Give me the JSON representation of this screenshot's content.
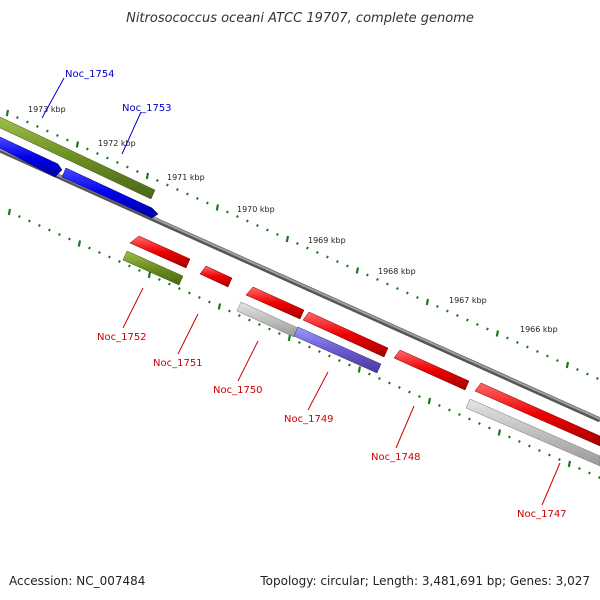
{
  "title": "Nitrosococcus oceani ATCC 19707, complete genome",
  "footer": {
    "accession": "Accession: NC_007484",
    "summary": "Topology: circular; Length: 3,481,691 bp; Genes: 3,027"
  },
  "ticks": [
    "1973 kbp",
    "1972 kbp",
    "1971 kbp",
    "1970 kbp",
    "1969 kbp",
    "1968 kbp",
    "1967 kbp",
    "1966 kbp"
  ],
  "genes_forward": [
    {
      "name": "Noc_1754",
      "color": "#0000cc"
    },
    {
      "name": "Noc_1753",
      "color": "#0000cc"
    }
  ],
  "genes_reverse": [
    {
      "name": "Noc_1752",
      "color": "#cc0000"
    },
    {
      "name": "Noc_1751",
      "color": "#cc0000"
    },
    {
      "name": "Noc_1750",
      "color": "#cc0000"
    },
    {
      "name": "Noc_1749",
      "color": "#cc0000"
    },
    {
      "name": "Noc_1748",
      "color": "#cc0000"
    },
    {
      "name": "Noc_1747",
      "color": "#cc0000"
    }
  ],
  "colors": {
    "cds_forward": "#0000ee",
    "cds_reverse": "#ee0000",
    "gene_feature": "#6b8e23",
    "rna_feature": "#7b68ee",
    "other_feature": "#b0b0b0",
    "backbone": "#808080",
    "tick": "#1a7a1a"
  }
}
